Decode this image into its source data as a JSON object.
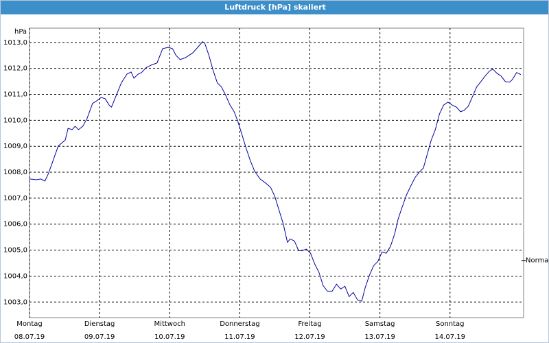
{
  "chart_data": {
    "type": "line",
    "title": "Luftdruck [hPa] skaliert",
    "y_label": "hPa",
    "x": [
      0,
      0.1,
      0.16,
      0.22,
      0.27,
      0.33,
      0.41,
      0.51,
      0.55,
      0.61,
      0.65,
      0.7,
      0.76,
      0.82,
      0.9,
      0.96,
      1.02,
      1.08,
      1.14,
      1.17,
      1.23,
      1.31,
      1.39,
      1.45,
      1.49,
      1.55,
      1.6,
      1.66,
      1.74,
      1.82,
      1.9,
      1.98,
      2.04,
      2.09,
      2.15,
      2.23,
      2.33,
      2.41,
      2.47,
      2.5,
      2.56,
      2.62,
      2.68,
      2.74,
      2.8,
      2.86,
      2.92,
      2.97,
      3.03,
      3.09,
      3.15,
      3.21,
      3.29,
      3.37,
      3.44,
      3.5,
      3.56,
      3.62,
      3.68,
      3.72,
      3.78,
      3.84,
      3.89,
      3.95,
      4.01,
      4.07,
      4.13,
      4.19,
      4.25,
      4.32,
      4.38,
      4.44,
      4.5,
      4.56,
      4.62,
      4.68,
      4.74,
      4.79,
      4.85,
      4.91,
      4.97,
      5.03,
      5.09,
      5.15,
      5.21,
      5.26,
      5.32,
      5.38,
      5.44,
      5.5,
      5.56,
      5.62,
      5.68,
      5.73,
      5.79,
      5.85,
      5.91,
      5.97,
      6.03,
      6.09,
      6.15,
      6.2,
      6.26,
      6.32,
      6.38,
      6.44,
      6.5,
      6.56,
      6.61,
      6.67,
      6.73,
      6.79,
      6.85,
      6.89,
      6.95,
      7.01
    ],
    "series": [
      {
        "color": "#0000a0",
        "values": [
          1007.74,
          1007.71,
          1007.74,
          1007.66,
          1007.95,
          1008.4,
          1009.01,
          1009.24,
          1009.69,
          1009.64,
          1009.77,
          1009.64,
          1009.77,
          1010.06,
          1010.65,
          1010.75,
          1010.88,
          1010.83,
          1010.57,
          1010.51,
          1010.91,
          1011.44,
          1011.78,
          1011.86,
          1011.62,
          1011.78,
          1011.84,
          1012.02,
          1012.13,
          1012.21,
          1012.76,
          1012.81,
          1012.76,
          1012.5,
          1012.34,
          1012.42,
          1012.6,
          1012.84,
          1013.03,
          1012.97,
          1012.5,
          1011.92,
          1011.44,
          1011.28,
          1010.96,
          1010.59,
          1010.33,
          1009.98,
          1009.46,
          1008.93,
          1008.45,
          1008.05,
          1007.74,
          1007.58,
          1007.42,
          1007.07,
          1006.54,
          1006.02,
          1005.3,
          1005.43,
          1005.35,
          1004.98,
          1004.98,
          1005.04,
          1004.88,
          1004.46,
          1004.14,
          1003.63,
          1003.42,
          1003.42,
          1003.69,
          1003.5,
          1003.61,
          1003.21,
          1003.37,
          1003.08,
          1003.03,
          1003.56,
          1004.03,
          1004.4,
          1004.56,
          1004.93,
          1004.88,
          1005.14,
          1005.62,
          1006.2,
          1006.68,
          1007.13,
          1007.47,
          1007.79,
          1008.0,
          1008.16,
          1008.74,
          1009.22,
          1009.64,
          1010.25,
          1010.59,
          1010.7,
          1010.59,
          1010.51,
          1010.33,
          1010.38,
          1010.54,
          1010.91,
          1011.28,
          1011.49,
          1011.7,
          1011.89,
          1011.97,
          1011.81,
          1011.7,
          1011.49,
          1011.47,
          1011.57,
          1011.84,
          1011.76
        ]
      }
    ],
    "xlim": [
      0,
      7.05
    ],
    "xticks": [
      {
        "value": 0,
        "label": "Montag\n08.07.19"
      },
      {
        "value": 1,
        "label": "Dienstag\n09.07.19"
      },
      {
        "value": 2,
        "label": "Mittwoch\n10.07.19"
      },
      {
        "value": 3,
        "label": "Donnerstag\n11.07.19"
      },
      {
        "value": 4,
        "label": "Freitag\n12.07.19"
      },
      {
        "value": 5,
        "label": "Samstag\n13.07.19"
      },
      {
        "value": 6,
        "label": "Sonntag\n14.07.19"
      }
    ],
    "ylim": [
      1002.4,
      1013.55
    ],
    "yticks": [
      {
        "value": 1003,
        "label": "1003,0"
      },
      {
        "value": 1004,
        "label": "1004,0"
      },
      {
        "value": 1005,
        "label": "1005,0"
      },
      {
        "value": 1006,
        "label": "1006,0"
      },
      {
        "value": 1007,
        "label": "1007,0"
      },
      {
        "value": 1008,
        "label": "1008,0"
      },
      {
        "value": 1009,
        "label": "1009,0"
      },
      {
        "value": 1010,
        "label": "1010,0"
      },
      {
        "value": 1011,
        "label": "1011,0"
      },
      {
        "value": 1012,
        "label": "1012,0"
      },
      {
        "value": 1013,
        "label": "1013,0"
      }
    ],
    "grid": true,
    "reference": {
      "value": 1004.6,
      "label": "Normal"
    }
  }
}
